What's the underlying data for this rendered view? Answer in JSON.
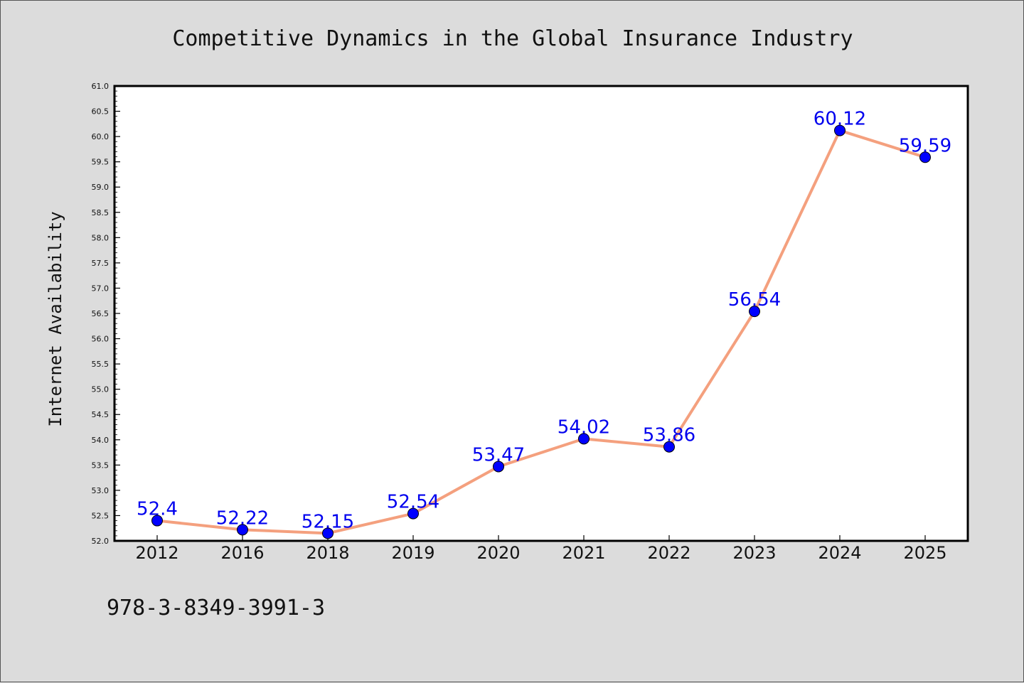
{
  "chart_data": {
    "type": "line",
    "title": "Competitive Dynamics in the Global Insurance Industry",
    "xlabel": "",
    "ylabel": "Internet Availability",
    "categories": [
      "2012",
      "2016",
      "2018",
      "2019",
      "2020",
      "2021",
      "2022",
      "2023",
      "2024",
      "2025"
    ],
    "series": [
      {
        "values": [
          52.4,
          52.22,
          52.15,
          52.54,
          53.47,
          54.02,
          53.86,
          56.54,
          60.12,
          59.59
        ]
      }
    ],
    "data_labels": [
      "52.4",
      "52.22",
      "52.15",
      "52.54",
      "53.47",
      "54.02",
      "53.86",
      "56.54",
      "60.12",
      "59.59"
    ],
    "ylim": [
      52.0,
      61.0
    ],
    "yticks": [
      "52.0",
      "52.5",
      "53.0",
      "53.5",
      "54.0",
      "54.5",
      "55.0",
      "55.5",
      "56.0",
      "56.5",
      "57.0",
      "57.5",
      "58.0",
      "58.5",
      "59.0",
      "59.5",
      "60.0",
      "60.5",
      "61.0"
    ],
    "grid": false,
    "colors": {
      "line": "#f4a07e",
      "marker": "#0000ff",
      "label": "#0000ee",
      "background": "#dcdcdc",
      "plot_background": "#ffffff"
    }
  },
  "footer": {
    "isbn": "978-3-8349-3991-3"
  }
}
